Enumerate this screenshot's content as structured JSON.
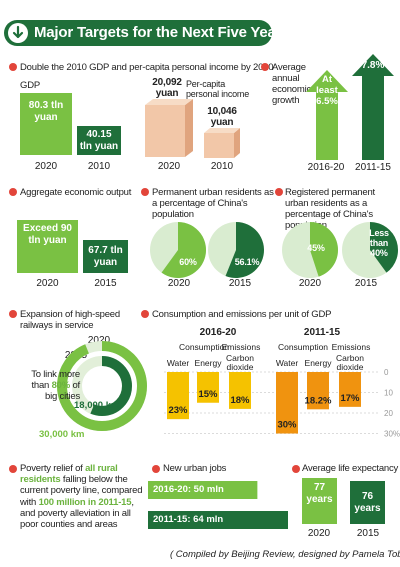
{
  "header": {
    "title": "Major Targets for the Next Five Years"
  },
  "gdp": {
    "title": "Double the 2010 GDP and per-capita personal income by 2020",
    "gdp_label": "GDP",
    "income_label": "Per-capita personal income",
    "gdp_2020": "80.3 tln yuan",
    "gdp_2010": "40.15 tln yuan",
    "income_2020": "20,092 yuan",
    "income_2010": "10,046 yuan",
    "year_a": "2020",
    "year_b": "2010"
  },
  "growth": {
    "title": "Average annual economic growth",
    "value_2016_20": "At least 6.5%",
    "value_2011_15": "7.8%",
    "period_a": "2016-20",
    "period_b": "2011-15"
  },
  "output": {
    "title": "Aggregate economic output",
    "value_2020": "Exceed 90 tln yuan",
    "value_2015": "67.7 tln yuan",
    "year_a": "2020",
    "year_b": "2015"
  },
  "urban": {
    "title": "Permanent urban residents as a percentage of China's population",
    "label_2020": "60%",
    "label_2015": "56.1%",
    "year_a": "2020",
    "year_b": "2015"
  },
  "registered": {
    "title": "Registered permanent urban residents as a percentage of China's population",
    "label_2020": "45%",
    "label_2015": "Less than 40%",
    "year_a": "2020",
    "year_b": "2015"
  },
  "rail": {
    "title": "Expansion of high-speed railways in service",
    "year_2020": "2020",
    "year_2015": "2015",
    "note_prefix": "To link more than",
    "note_highlight": "80%",
    "note_suffix": "of big cities",
    "value_2015": "18,000 km",
    "value_2020": "30,000 km"
  },
  "emissions": {
    "title": "Consumption and emissions per unit of GDP",
    "group_a": "2016-20",
    "group_b": "2011-15",
    "header_consumption": "Consumption",
    "header_emissions": "Emissions",
    "cats": [
      "Water",
      "Energy",
      "Carbon dioxide"
    ],
    "ticks": [
      "0",
      "10",
      "20",
      "30%"
    ]
  },
  "poverty": {
    "line1": "Poverty relief of",
    "hl1": "all rural residents",
    "line2": "falling below the current poverty line, compared with",
    "hl2": "100 million in 2011-15",
    "line3": ", and poverty alleviation in all poor counties and areas"
  },
  "jobs": {
    "title": "New urban jobs",
    "bar_a": "2016-20: 50 mln",
    "bar_b": "2011-15: 64 mln"
  },
  "life": {
    "title": "Average life expectancy",
    "value_2020": "77 years",
    "value_2015": "76 years",
    "year_a": "2020",
    "year_b": "2015"
  },
  "footer": {
    "credit": "( Compiled by Beijing Review, designed by Pamela Tobey)"
  },
  "colors": {
    "dark_green": "#1f6f3a",
    "light_green": "#7ac143",
    "yellow": "#f5c200",
    "orange": "#f0930f",
    "red_dot": "#e2453a",
    "box_pink": "#f2c7a8",
    "box_side": "#e0a47e"
  },
  "chart_data": [
    {
      "type": "bar",
      "title": "GDP",
      "categories": [
        "2020",
        "2010"
      ],
      "values": [
        80.3,
        40.15
      ],
      "unit": "tln yuan"
    },
    {
      "type": "bar",
      "title": "Per-capita personal income",
      "categories": [
        "2020",
        "2010"
      ],
      "values": [
        20092,
        10046
      ],
      "unit": "yuan"
    },
    {
      "type": "bar",
      "title": "Average annual economic growth",
      "categories": [
        "2016-20",
        "2011-15"
      ],
      "values": [
        6.5,
        7.8
      ],
      "unit": "%"
    },
    {
      "type": "bar",
      "title": "Aggregate economic output",
      "categories": [
        "2020",
        "2015"
      ],
      "values": [
        90,
        67.7
      ],
      "unit": "tln yuan"
    },
    {
      "type": "pie",
      "title": "Permanent urban residents as a percentage of China's population",
      "categories": [
        "2020",
        "2015"
      ],
      "values": [
        60,
        56.1
      ],
      "unit": "%"
    },
    {
      "type": "pie",
      "title": "Registered permanent urban residents as a percentage of China's population",
      "categories": [
        "2020",
        "2015"
      ],
      "values": [
        45,
        40
      ],
      "unit": "%"
    },
    {
      "type": "bar",
      "title": "Expansion of high-speed railways in service",
      "categories": [
        "2020",
        "2015"
      ],
      "values": [
        30000,
        18000
      ],
      "unit": "km"
    },
    {
      "type": "bar",
      "title": "Consumption and emissions per unit of GDP",
      "categories": [
        "Water",
        "Energy",
        "Carbon dioxide"
      ],
      "series": [
        {
          "name": "2016-20",
          "values": [
            23,
            15,
            18
          ]
        },
        {
          "name": "2011-15",
          "values": [
            30,
            18.2,
            17
          ]
        }
      ],
      "ylim": [
        0,
        30
      ],
      "unit": "%"
    },
    {
      "type": "bar",
      "title": "New urban jobs",
      "categories": [
        "2016-20",
        "2011-15"
      ],
      "values": [
        50,
        64
      ],
      "unit": "mln"
    },
    {
      "type": "bar",
      "title": "Average life expectancy",
      "categories": [
        "2020",
        "2015"
      ],
      "values": [
        77,
        76
      ],
      "unit": "years"
    }
  ]
}
